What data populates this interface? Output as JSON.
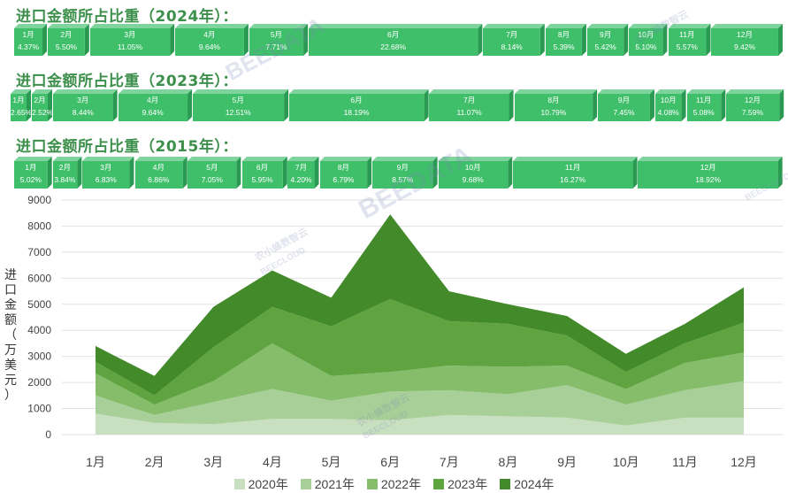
{
  "sections": [
    {
      "title": "进口金额所占比重（2024年）：",
      "segments": [
        {
          "month": "1月",
          "share": "4.37%"
        },
        {
          "month": "2月",
          "share": "5.50%"
        },
        {
          "month": "3月",
          "share": "11.05%"
        },
        {
          "month": "4月",
          "share": "9.64%"
        },
        {
          "month": "5月",
          "share": "7.71%"
        },
        {
          "month": "6月",
          "share": "22.68%"
        },
        {
          "month": "7月",
          "share": "8.14%"
        },
        {
          "month": "8月",
          "share": "5.39%"
        },
        {
          "month": "9月",
          "share": "5.42%"
        },
        {
          "month": "10月",
          "share": "5.10%"
        },
        {
          "month": "11月",
          "share": "5.57%"
        },
        {
          "month": "12月",
          "share": "9.42%"
        }
      ]
    },
    {
      "title": "进口金额所占比重（2023年）：",
      "segments": [
        {
          "month": "1月",
          "share": "2.65%"
        },
        {
          "month": "2月",
          "share": "2.52%"
        },
        {
          "month": "3月",
          "share": "8.44%"
        },
        {
          "month": "4月",
          "share": "9.64%"
        },
        {
          "month": "5月",
          "share": "12.51%"
        },
        {
          "month": "6月",
          "share": "18.19%"
        },
        {
          "month": "7月",
          "share": "11.07%"
        },
        {
          "month": "8月",
          "share": "10.79%"
        },
        {
          "month": "9月",
          "share": "7.45%"
        },
        {
          "month": "10月",
          "share": "4.08%"
        },
        {
          "month": "11月",
          "share": "5.08%"
        },
        {
          "month": "12月",
          "share": "7.59%"
        }
      ]
    },
    {
      "title": "进口金额所占比重（2015年）：",
      "segments": [
        {
          "month": "1月",
          "share": "5.02%"
        },
        {
          "month": "2月",
          "share": "3.84%"
        },
        {
          "month": "3月",
          "share": "6.83%"
        },
        {
          "month": "4月",
          "share": "6.86%"
        },
        {
          "month": "5月",
          "share": "7.05%"
        },
        {
          "month": "6月",
          "share": "5.95%"
        },
        {
          "month": "7月",
          "share": "4.20%"
        },
        {
          "month": "8月",
          "share": "6.79%"
        },
        {
          "month": "9月",
          "share": "8.57%"
        },
        {
          "month": "10月",
          "share": "9.68%"
        },
        {
          "month": "11月",
          "share": "16.27%"
        },
        {
          "month": "12月",
          "share": "18.92%"
        }
      ]
    }
  ],
  "chart_data": {
    "type": "area",
    "stacked": true,
    "title": "",
    "xlabel": "",
    "ylabel": "进口金额（万美元）",
    "categories": [
      "1月",
      "2月",
      "3月",
      "4月",
      "5月",
      "6月",
      "7月",
      "8月",
      "9月",
      "10月",
      "11月",
      "12月"
    ],
    "ylim": [
      0,
      9000
    ],
    "yticks": [
      0,
      1000,
      2000,
      3000,
      4000,
      5000,
      6000,
      7000,
      8000,
      9000
    ],
    "grid": true,
    "legend_position": "bottom",
    "series": [
      {
        "name": "2020年",
        "color": "#c8dfc0",
        "values": [
          800,
          450,
          400,
          600,
          600,
          550,
          750,
          700,
          650,
          350,
          650,
          650
        ]
      },
      {
        "name": "2021年",
        "color": "#a9cf98",
        "values": [
          700,
          300,
          850,
          1150,
          700,
          1100,
          950,
          850,
          1250,
          800,
          1050,
          1400
        ]
      },
      {
        "name": "2022年",
        "color": "#85bd6b",
        "values": [
          850,
          400,
          800,
          1750,
          950,
          750,
          950,
          1050,
          750,
          600,
          1050,
          1100
        ]
      },
      {
        "name": "2023年",
        "color": "#5fa440",
        "values": [
          450,
          350,
          1300,
          1400,
          1900,
          2800,
          1700,
          1650,
          1150,
          650,
          750,
          1150
        ]
      },
      {
        "name": "2024年",
        "color": "#438a2a",
        "values": [
          600,
          750,
          1550,
          1400,
          1100,
          3250,
          1150,
          750,
          750,
          700,
          750,
          1350
        ]
      }
    ]
  },
  "legend": [
    {
      "name": "2020年",
      "color": "#c8dfc0"
    },
    {
      "name": "2021年",
      "color": "#a9cf98"
    },
    {
      "name": "2022年",
      "color": "#85bd6b"
    },
    {
      "name": "2023年",
      "color": "#5fa440"
    },
    {
      "name": "2024年",
      "color": "#438a2a"
    }
  ],
  "watermarks": [
    "BEEDATA",
    "农小蜂数智云",
    "BEECLOUD"
  ],
  "colors": {
    "bar_front": "#3fbf6a",
    "bar_top": "#7ed49c",
    "bar_side": "#2a9a52",
    "title": "#3d8f4c"
  }
}
